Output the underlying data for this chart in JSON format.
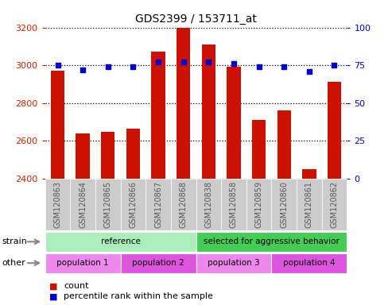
{
  "title": "GDS2399 / 153711_at",
  "samples": [
    "GSM120863",
    "GSM120864",
    "GSM120865",
    "GSM120866",
    "GSM120867",
    "GSM120868",
    "GSM120838",
    "GSM120858",
    "GSM120859",
    "GSM120860",
    "GSM120861",
    "GSM120862"
  ],
  "counts": [
    2970,
    2640,
    2645,
    2665,
    3070,
    3200,
    3110,
    2990,
    2710,
    2760,
    2450,
    2910
  ],
  "percentiles": [
    75,
    72,
    74,
    74,
    77,
    77,
    77,
    76,
    74,
    74,
    71,
    75
  ],
  "ylim_left": [
    2400,
    3200
  ],
  "ylim_right": [
    0,
    100
  ],
  "yticks_left": [
    2400,
    2600,
    2800,
    3000,
    3200
  ],
  "yticks_right": [
    0,
    25,
    50,
    75,
    100
  ],
  "bar_color": "#cc1100",
  "dot_color": "#0000cc",
  "grid_color": "#000000",
  "axis_color_left": "#cc2200",
  "axis_color_right": "#0000dd",
  "strain_groups": [
    {
      "label": "reference",
      "start": 0,
      "end": 6,
      "color": "#aaeebb"
    },
    {
      "label": "selected for aggressive behavior",
      "start": 6,
      "end": 12,
      "color": "#44cc55"
    }
  ],
  "other_groups": [
    {
      "label": "population 1",
      "start": 0,
      "end": 3,
      "color": "#ee88ee"
    },
    {
      "label": "population 2",
      "start": 3,
      "end": 6,
      "color": "#dd55dd"
    },
    {
      "label": "population 3",
      "start": 6,
      "end": 9,
      "color": "#ee88ee"
    },
    {
      "label": "population 4",
      "start": 9,
      "end": 12,
      "color": "#dd55dd"
    }
  ],
  "strain_label": "strain",
  "other_label": "other",
  "legend_count_label": "count",
  "legend_percentile_label": "percentile rank within the sample",
  "tick_label_color": "#555555",
  "bg_color": "#ffffff",
  "tick_bg_color": "#cccccc"
}
